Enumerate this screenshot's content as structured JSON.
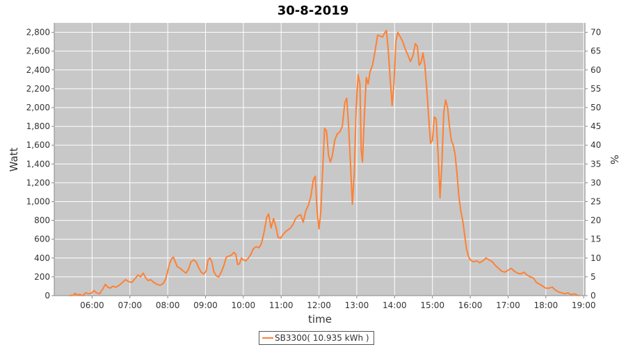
{
  "chart_data": {
    "type": "line",
    "title": "30-8-2019",
    "xlabel": "time",
    "ylabel": "Watt",
    "y2label": "%",
    "ylim": [
      0,
      2900
    ],
    "y2lim": [
      0,
      72.5
    ],
    "xlim": [
      "05:00",
      "19:02"
    ],
    "x_ticks": [
      "06:00",
      "07:00",
      "08:00",
      "09:00",
      "10:00",
      "11:00",
      "12:00",
      "13:00",
      "14:00",
      "15:00",
      "16:00",
      "17:00",
      "18:00",
      "19:00"
    ],
    "y_ticks": [
      0,
      200,
      400,
      600,
      800,
      1000,
      1200,
      1400,
      1600,
      1800,
      2000,
      2200,
      2400,
      2600,
      2800
    ],
    "y_tick_labels": [
      "0",
      "200",
      "400",
      "600",
      "800",
      "1,000",
      "1,200",
      "1,400",
      "1,600",
      "1,800",
      "2,000",
      "2,200",
      "2,400",
      "2,600",
      "2,800"
    ],
    "y2_ticks": [
      0,
      5,
      10,
      15,
      20,
      25,
      30,
      35,
      40,
      45,
      50,
      55,
      60,
      65,
      70
    ],
    "grid": true,
    "legend_position": "bottom-center",
    "plot_background": "#c8c8c8",
    "grid_color": "#ffffff",
    "series": [
      {
        "name": "SB3300( 10.935 kWh )",
        "color": "#ff8033",
        "points": [
          [
            "05:25",
            0
          ],
          [
            "05:30",
            5
          ],
          [
            "05:33",
            25
          ],
          [
            "05:37",
            5
          ],
          [
            "05:40",
            15
          ],
          [
            "05:45",
            0
          ],
          [
            "05:50",
            30
          ],
          [
            "05:55",
            20
          ],
          [
            "06:00",
            30
          ],
          [
            "06:03",
            55
          ],
          [
            "06:07",
            30
          ],
          [
            "06:12",
            20
          ],
          [
            "06:17",
            70
          ],
          [
            "06:21",
            120
          ],
          [
            "06:25",
            90
          ],
          [
            "06:29",
            80
          ],
          [
            "06:33",
            100
          ],
          [
            "06:38",
            90
          ],
          [
            "06:43",
            110
          ],
          [
            "06:48",
            140
          ],
          [
            "06:53",
            170
          ],
          [
            "06:58",
            150
          ],
          [
            "07:03",
            140
          ],
          [
            "07:08",
            180
          ],
          [
            "07:13",
            220
          ],
          [
            "07:17",
            200
          ],
          [
            "07:21",
            240
          ],
          [
            "07:25",
            190
          ],
          [
            "07:29",
            160
          ],
          [
            "07:33",
            170
          ],
          [
            "07:38",
            140
          ],
          [
            "07:43",
            120
          ],
          [
            "07:48",
            110
          ],
          [
            "07:53",
            130
          ],
          [
            "07:57",
            180
          ],
          [
            "08:00",
            260
          ],
          [
            "08:03",
            340
          ],
          [
            "08:06",
            390
          ],
          [
            "08:09",
            410
          ],
          [
            "08:12",
            360
          ],
          [
            "08:15",
            310
          ],
          [
            "08:20",
            290
          ],
          [
            "08:25",
            260
          ],
          [
            "08:29",
            240
          ],
          [
            "08:33",
            280
          ],
          [
            "08:37",
            360
          ],
          [
            "08:41",
            380
          ],
          [
            "08:45",
            360
          ],
          [
            "08:49",
            300
          ],
          [
            "08:53",
            250
          ],
          [
            "08:57",
            230
          ],
          [
            "09:01",
            260
          ],
          [
            "09:04",
            380
          ],
          [
            "09:07",
            400
          ],
          [
            "09:10",
            360
          ],
          [
            "09:13",
            260
          ],
          [
            "09:17",
            210
          ],
          [
            "09:21",
            200
          ],
          [
            "09:25",
            250
          ],
          [
            "09:29",
            320
          ],
          [
            "09:33",
            410
          ],
          [
            "09:37",
            420
          ],
          [
            "09:41",
            430
          ],
          [
            "09:45",
            460
          ],
          [
            "09:48",
            440
          ],
          [
            "09:51",
            330
          ],
          [
            "09:54",
            340
          ],
          [
            "09:57",
            400
          ],
          [
            "10:00",
            380
          ],
          [
            "10:04",
            370
          ],
          [
            "10:08",
            400
          ],
          [
            "10:12",
            440
          ],
          [
            "10:16",
            500
          ],
          [
            "10:20",
            520
          ],
          [
            "10:25",
            510
          ],
          [
            "10:29",
            560
          ],
          [
            "10:33",
            680
          ],
          [
            "10:37",
            830
          ],
          [
            "10:40",
            870
          ],
          [
            "10:44",
            720
          ],
          [
            "10:48",
            820
          ],
          [
            "10:52",
            720
          ],
          [
            "10:55",
            620
          ],
          [
            "10:59",
            610
          ],
          [
            "11:03",
            650
          ],
          [
            "11:07",
            680
          ],
          [
            "11:11",
            700
          ],
          [
            "11:15",
            720
          ],
          [
            "11:19",
            760
          ],
          [
            "11:23",
            820
          ],
          [
            "11:27",
            850
          ],
          [
            "11:31",
            860
          ],
          [
            "11:35",
            780
          ],
          [
            "11:39",
            900
          ],
          [
            "11:43",
            960
          ],
          [
            "11:47",
            1050
          ],
          [
            "11:51",
            1230
          ],
          [
            "11:54",
            1270
          ],
          [
            "11:57",
            900
          ],
          [
            "12:00",
            710
          ],
          [
            "12:03",
            900
          ],
          [
            "12:06",
            1350
          ],
          [
            "12:09",
            1780
          ],
          [
            "12:12",
            1750
          ],
          [
            "12:15",
            1500
          ],
          [
            "12:18",
            1420
          ],
          [
            "12:21",
            1480
          ],
          [
            "12:25",
            1650
          ],
          [
            "12:29",
            1720
          ],
          [
            "12:33",
            1740
          ],
          [
            "12:37",
            1800
          ],
          [
            "12:41",
            2050
          ],
          [
            "12:44",
            2100
          ],
          [
            "12:47",
            1800
          ],
          [
            "12:50",
            1400
          ],
          [
            "12:53",
            970
          ],
          [
            "12:56",
            1300
          ],
          [
            "12:59",
            2000
          ],
          [
            "13:02",
            2350
          ],
          [
            "13:05",
            2250
          ],
          [
            "13:07",
            1550
          ],
          [
            "13:09",
            1420
          ],
          [
            "13:12",
            1900
          ],
          [
            "13:15",
            2320
          ],
          [
            "13:18",
            2250
          ],
          [
            "13:21",
            2380
          ],
          [
            "13:25",
            2450
          ],
          [
            "13:29",
            2600
          ],
          [
            "13:33",
            2770
          ],
          [
            "13:37",
            2760
          ],
          [
            "13:41",
            2750
          ],
          [
            "13:44",
            2790
          ],
          [
            "13:47",
            2820
          ],
          [
            "13:50",
            2600
          ],
          [
            "13:53",
            2300
          ],
          [
            "13:56",
            2020
          ],
          [
            "13:59",
            2250
          ],
          [
            "14:02",
            2700
          ],
          [
            "14:05",
            2800
          ],
          [
            "14:09",
            2750
          ],
          [
            "14:13",
            2700
          ],
          [
            "14:17",
            2620
          ],
          [
            "14:21",
            2560
          ],
          [
            "14:25",
            2490
          ],
          [
            "14:29",
            2550
          ],
          [
            "14:33",
            2680
          ],
          [
            "14:36",
            2650
          ],
          [
            "14:39",
            2450
          ],
          [
            "14:42",
            2480
          ],
          [
            "14:45",
            2580
          ],
          [
            "14:48",
            2450
          ],
          [
            "14:51",
            2200
          ],
          [
            "14:54",
            1900
          ],
          [
            "14:57",
            1620
          ],
          [
            "15:00",
            1650
          ],
          [
            "15:03",
            1900
          ],
          [
            "15:06",
            1880
          ],
          [
            "15:09",
            1500
          ],
          [
            "15:12",
            1040
          ],
          [
            "15:15",
            1400
          ],
          [
            "15:18",
            1950
          ],
          [
            "15:21",
            2080
          ],
          [
            "15:24",
            2000
          ],
          [
            "15:27",
            1800
          ],
          [
            "15:30",
            1650
          ],
          [
            "15:33",
            1600
          ],
          [
            "15:36",
            1500
          ],
          [
            "15:39",
            1300
          ],
          [
            "15:42",
            1050
          ],
          [
            "15:45",
            900
          ],
          [
            "15:48",
            800
          ],
          [
            "15:51",
            650
          ],
          [
            "15:54",
            500
          ],
          [
            "15:57",
            420
          ],
          [
            "16:00",
            380
          ],
          [
            "16:05",
            360
          ],
          [
            "16:10",
            370
          ],
          [
            "16:15",
            350
          ],
          [
            "16:20",
            370
          ],
          [
            "16:25",
            400
          ],
          [
            "16:30",
            380
          ],
          [
            "16:35",
            360
          ],
          [
            "16:40",
            320
          ],
          [
            "16:45",
            290
          ],
          [
            "16:50",
            260
          ],
          [
            "16:55",
            250
          ],
          [
            "17:00",
            270
          ],
          [
            "17:05",
            290
          ],
          [
            "17:10",
            260
          ],
          [
            "17:15",
            240
          ],
          [
            "17:20",
            230
          ],
          [
            "17:25",
            250
          ],
          [
            "17:30",
            220
          ],
          [
            "17:35",
            200
          ],
          [
            "17:40",
            190
          ],
          [
            "17:45",
            140
          ],
          [
            "17:50",
            120
          ],
          [
            "17:55",
            100
          ],
          [
            "18:00",
            80
          ],
          [
            "18:05",
            80
          ],
          [
            "18:10",
            90
          ],
          [
            "18:15",
            60
          ],
          [
            "18:20",
            40
          ],
          [
            "18:25",
            30
          ],
          [
            "18:30",
            20
          ],
          [
            "18:35",
            30
          ],
          [
            "18:40",
            10
          ],
          [
            "18:45",
            20
          ],
          [
            "18:48",
            10
          ],
          [
            "18:52",
            0
          ]
        ]
      }
    ]
  }
}
